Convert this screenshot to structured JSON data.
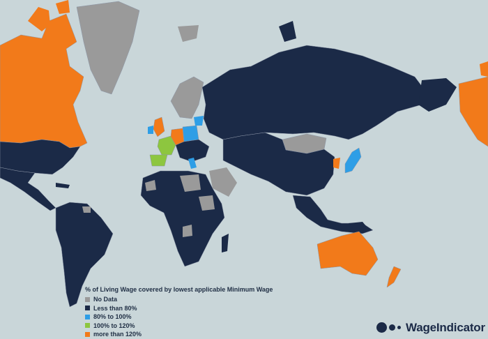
{
  "map": {
    "regions": [
      {
        "name": "canada",
        "category": "more-than-120"
      },
      {
        "name": "alaska",
        "category": "more-than-120"
      },
      {
        "name": "greenland",
        "category": "no-data"
      },
      {
        "name": "usa",
        "category": "less-than-80"
      },
      {
        "name": "south-america",
        "category": "less-than-80"
      },
      {
        "name": "russia",
        "category": "less-than-80"
      },
      {
        "name": "australia",
        "category": "more-than-120"
      },
      {
        "name": "new-zealand",
        "category": "more-than-120"
      },
      {
        "name": "japan",
        "category": "80-to-100"
      },
      {
        "name": "mongolia",
        "category": "no-data"
      },
      {
        "name": "france",
        "category": "100-to-120"
      }
    ]
  },
  "legend": {
    "title": "% of Living Wage covered by lowest applicable Minimum Wage",
    "items": [
      {
        "label": "No Data",
        "color": "#9a9a9a"
      },
      {
        "label": "Less than 80%",
        "color": "#1b2a47"
      },
      {
        "label": "80% to 100%",
        "color": "#2e9ee6"
      },
      {
        "label": "100% to 120%",
        "color": "#8dc63f"
      },
      {
        "label": "more than 120%",
        "color": "#f27a1a"
      }
    ]
  },
  "brand": {
    "name": "WageIndicator"
  },
  "colors": {
    "ocean": "#c9d6d9",
    "navy": "#1b2a47",
    "orange": "#f27a1a",
    "grey": "#9a9a9a",
    "blue": "#2e9ee6",
    "green": "#8dc63f",
    "border": "#8a94a6"
  }
}
